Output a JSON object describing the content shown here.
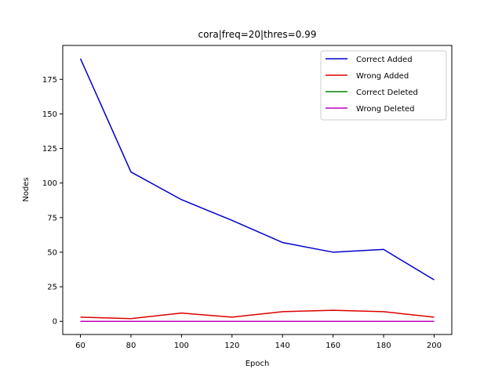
{
  "chart_data": {
    "type": "line",
    "title": "cora|freq=20|thres=0.99",
    "xlabel": "Epoch",
    "ylabel": "Nodes",
    "x": [
      60,
      80,
      100,
      120,
      140,
      160,
      180,
      200
    ],
    "xticks": [
      60,
      80,
      100,
      120,
      140,
      160,
      180,
      200
    ],
    "yticks": [
      0,
      25,
      50,
      75,
      100,
      125,
      150,
      175
    ],
    "xlim": [
      53,
      207
    ],
    "ylim": [
      -9.5,
      199.5
    ],
    "grid": false,
    "legend_position": "top-right",
    "series": [
      {
        "name": "Correct Added",
        "color": "#0000cc",
        "values": [
          190,
          108,
          88,
          73,
          57,
          50,
          52,
          30
        ]
      },
      {
        "name": "Wrong Added",
        "color": "#dd0000",
        "values": [
          3,
          2,
          6,
          3,
          7,
          8,
          7,
          3
        ]
      },
      {
        "name": "Correct Deleted",
        "color": "#008000",
        "values": [
          0,
          0,
          0,
          0,
          0,
          0,
          0,
          0
        ]
      },
      {
        "name": "Wrong Deleted",
        "color": "#bf00bf",
        "values": [
          0,
          0,
          0,
          0,
          0,
          0,
          0,
          0
        ]
      }
    ]
  }
}
